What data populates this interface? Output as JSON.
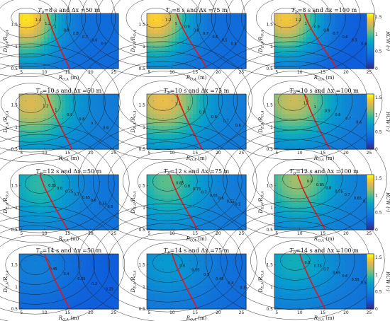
{
  "chart_data": {
    "type": "heatmap",
    "colorbar": {
      "label": "RCW (-)",
      "ticks": [
        "0",
        "0.5",
        "1",
        "1.5"
      ],
      "range": [
        0,
        1.6
      ]
    },
    "xlabel_base": "R",
    "xlabel_sub": "O,A",
    "xlabel_unit": "(m)",
    "ylabel_left": "D",
    "ylabel_sub1": "E,A",
    "ylabel_mid": "/R",
    "ylabel_sub2": "O,A",
    "xticks": [
      "5",
      "10",
      "15",
      "20",
      "25"
    ],
    "xlim": [
      4.5,
      26
    ],
    "yticks": [
      "0.5",
      "1",
      "1.5"
    ],
    "ylim": [
      0.5,
      1.75
    ],
    "panels": [
      {
        "tp": "8",
        "dx": "50",
        "title_prefix": "T",
        "title_sub": "p",
        "title_mid": "=8 s and Δx =50 m",
        "peak": 1.55,
        "px": 6,
        "py": 1.65,
        "base": 0.35,
        "decay": 7,
        "redx0": 15.5,
        "redx1": 10.5,
        "labels": [
          "1.4",
          "1.2",
          "1",
          "0.9",
          "0.8",
          "0.7",
          "0.6",
          "0.5"
        ]
      },
      {
        "tp": "8",
        "dx": "75",
        "title_prefix": "T",
        "title_sub": "p",
        "title_mid": "=8 s and Δx =75 m",
        "peak": 1.5,
        "px": 6.5,
        "py": 1.65,
        "base": 0.35,
        "decay": 7,
        "redx0": 17.5,
        "redx1": 11,
        "labels": [
          "1.2",
          "1",
          "0.9",
          "0.8",
          "0.7",
          "0.6",
          "0.5",
          "0.4"
        ]
      },
      {
        "tp": "8",
        "dx": "100",
        "title_prefix": "T",
        "title_sub": "p",
        "title_mid": "=8 s and Δx =100 m",
        "peak": 1.45,
        "px": 7,
        "py": 1.65,
        "base": 0.25,
        "decay": 7.5,
        "redx0": 18,
        "redx1": 11,
        "labels": [
          "1.2",
          "1",
          "0.9",
          "0.8",
          "0.7",
          "0.6",
          "0.5",
          "0.4"
        ]
      },
      {
        "tp": "10",
        "dx": "50",
        "title_prefix": "T",
        "title_sub": "p",
        "title_mid": "=10 s and Δx =50 m",
        "peak": 1.35,
        "px": 7,
        "py": 1.55,
        "base": 0.45,
        "decay": 9,
        "redx0": 16,
        "redx1": 10.5,
        "labels": [
          "1.2",
          "1",
          "0.9",
          "0.8",
          "0.7",
          "0.6"
        ]
      },
      {
        "tp": "10",
        "dx": "75",
        "title_prefix": "T",
        "title_sub": "p",
        "title_mid": "=10 s and Δx =75 m",
        "peak": 1.4,
        "px": 8,
        "py": 1.6,
        "base": 0.45,
        "decay": 9,
        "redx0": 16.5,
        "redx1": 11,
        "labels": [
          "1.2",
          "1",
          "0.9",
          "0.8",
          "0.7",
          "0.6"
        ]
      },
      {
        "tp": "10",
        "dx": "100",
        "title_prefix": "T",
        "title_sub": "p",
        "title_mid": "=10 s and Δx =100 m",
        "peak": 1.3,
        "px": 8.5,
        "py": 1.6,
        "base": 0.4,
        "decay": 9,
        "redx0": 16.5,
        "redx1": 11,
        "labels": [
          "1.1",
          "1",
          "0.9",
          "0.8",
          "0.7",
          "0.6",
          "0.5"
        ]
      },
      {
        "tp": "12",
        "dx": "50",
        "title_prefix": "T",
        "title_sub": "p",
        "title_mid": "=12 s and Δx =50 m",
        "peak": 0.95,
        "px": 9,
        "py": 1.55,
        "base": 0.4,
        "decay": 8,
        "redx0": 15,
        "redx1": 9,
        "labels": [
          "0.85",
          "0.8",
          "0.75",
          "0.7",
          "0.65",
          "0.6",
          "0.55",
          "0.5",
          "0.45"
        ]
      },
      {
        "tp": "12",
        "dx": "75",
        "title_prefix": "T",
        "title_sub": "p",
        "title_mid": "=12 s and Δx =75 m",
        "peak": 1.05,
        "px": 9,
        "py": 1.6,
        "base": 0.45,
        "decay": 8,
        "redx0": 15.5,
        "redx1": 9.5,
        "labels": [
          "0.85",
          "0.8",
          "0.75",
          "0.7",
          "0.65",
          "0.6",
          "0.55",
          "0.5",
          "0.45"
        ]
      },
      {
        "tp": "12",
        "dx": "100",
        "title_prefix": "T",
        "title_sub": "p",
        "title_mid": "=12 s and Δx =100 m",
        "peak": 1.2,
        "px": 9.5,
        "py": 1.65,
        "base": 0.45,
        "decay": 8,
        "redx0": 15.5,
        "redx1": 9.5,
        "labels": [
          "0.9",
          "0.85",
          "0.8",
          "0.75",
          "0.7",
          "0.65",
          "0.6",
          "0.55"
        ]
      },
      {
        "tp": "14",
        "dx": "50",
        "title_prefix": "T",
        "title_sub": "p",
        "title_mid": "=14 s and Δx =50 m",
        "peak": 0.5,
        "px": 8,
        "py": 1.5,
        "base": 0.25,
        "decay": 9,
        "redx0": 15.5,
        "redx1": 10,
        "labels": [
          "0.45",
          "0.4",
          "0.35",
          "0.3",
          "0.25"
        ]
      },
      {
        "tp": "14",
        "dx": "75",
        "title_prefix": "T",
        "title_sub": "p",
        "title_mid": "=14 s and Δx =75 m",
        "peak": 0.7,
        "px": 9,
        "py": 1.55,
        "base": 0.35,
        "decay": 9,
        "redx0": 15.5,
        "redx1": 10,
        "labels": [
          "0.6",
          "0.55",
          "0.5",
          "0.45",
          "0.4",
          "0.35"
        ]
      },
      {
        "tp": "14",
        "dx": "100",
        "title_prefix": "T",
        "title_sub": "p",
        "title_mid": "=14 s and Δx =100 m",
        "peak": 0.85,
        "px": 9,
        "py": 1.6,
        "base": 0.4,
        "decay": 9,
        "redx0": 15.5,
        "redx1": 10,
        "labels": [
          "0.8",
          "0.75",
          "0.7",
          "0.65",
          "0.6",
          "0.55",
          "0.5",
          "0.45"
        ]
      }
    ]
  }
}
